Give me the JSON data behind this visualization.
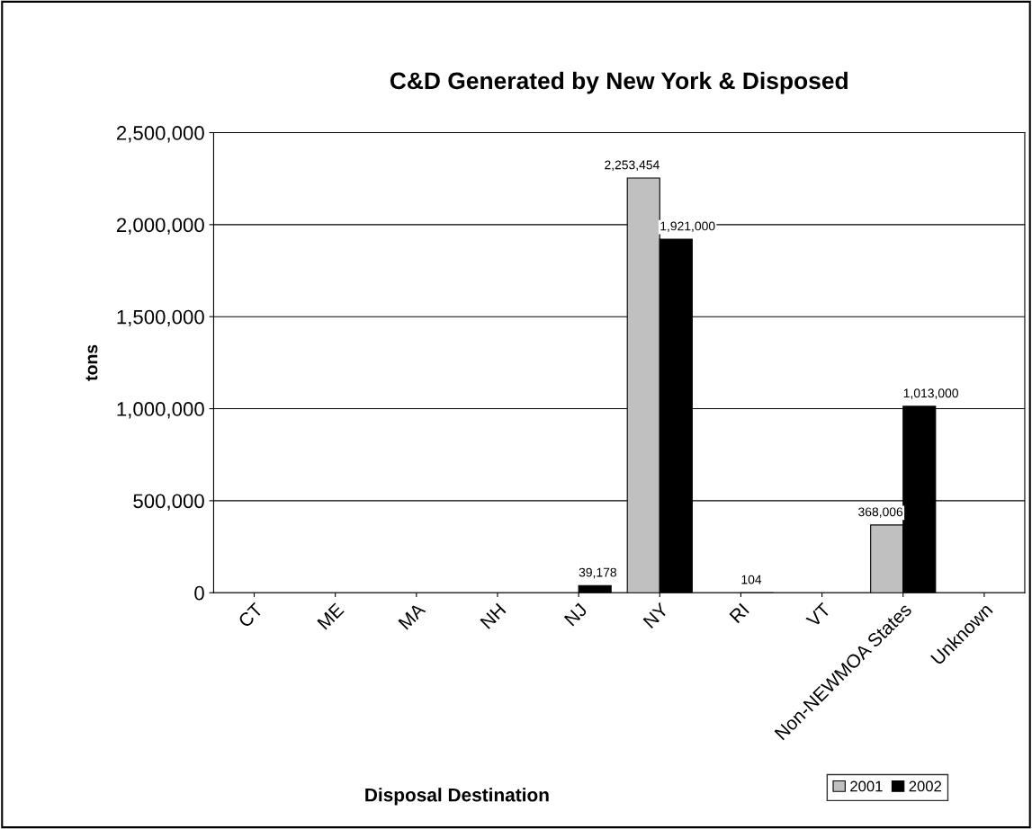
{
  "chart_data": {
    "type": "bar",
    "title": "C&D Generated by New York & Disposed",
    "xlabel": "Disposal Destination",
    "ylabel": "tons",
    "categories": [
      "CT",
      "ME",
      "MA",
      "NH",
      "NJ",
      "NY",
      "RI",
      "VT",
      "Non-NEWMOA States",
      "Unknown"
    ],
    "series": [
      {
        "name": "2001",
        "color": "#c0c0c0",
        "values": [
          null,
          null,
          null,
          null,
          null,
          2253454,
          null,
          null,
          368006,
          null
        ],
        "value_labels": [
          null,
          null,
          null,
          null,
          null,
          "2,253,454",
          null,
          null,
          "368,006",
          null
        ]
      },
      {
        "name": "2002",
        "color": "#000000",
        "values": [
          null,
          null,
          null,
          null,
          39178,
          1921000,
          104,
          null,
          1013000,
          null
        ],
        "value_labels": [
          null,
          null,
          null,
          null,
          "39,178",
          "1,921,000",
          "104",
          null,
          "1,013,000",
          null
        ]
      }
    ],
    "ylim": [
      0,
      2500000
    ],
    "yticks": [
      {
        "value": 0,
        "label": "0"
      },
      {
        "value": 500000,
        "label": "500,000"
      },
      {
        "value": 1000000,
        "label": "1,000,000"
      },
      {
        "value": 1500000,
        "label": "1,500,000"
      },
      {
        "value": 2000000,
        "label": "2,000,000"
      },
      {
        "value": 2500000,
        "label": "2,500,000"
      }
    ],
    "grid": "y",
    "legend": "bottom right"
  }
}
